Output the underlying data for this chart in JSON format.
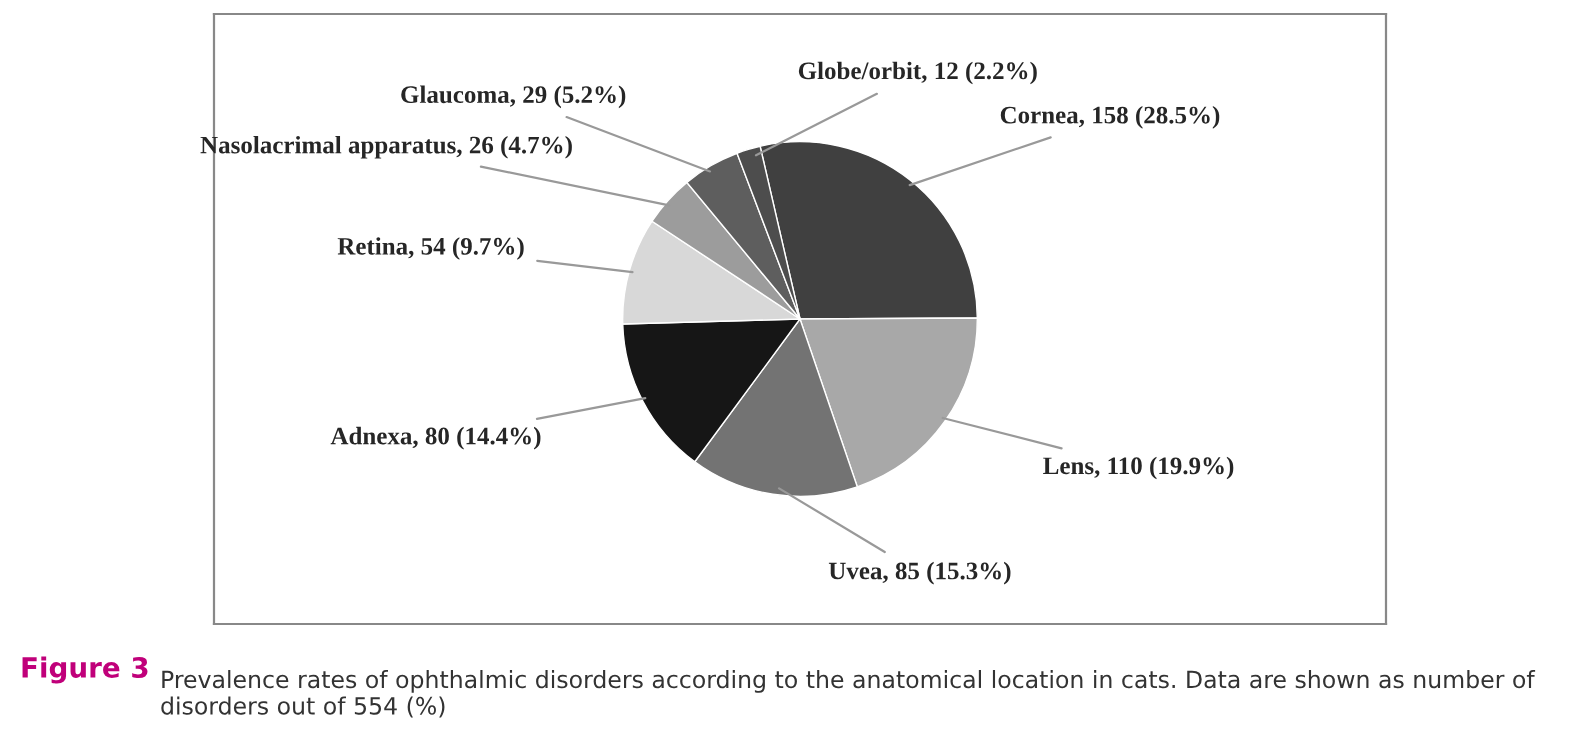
{
  "chart_data": {
    "type": "pie",
    "categories": [
      "Cornea, 158 (28.5%)",
      "Lens, 110 (19.9%)",
      "Uvea, 85 (15.3%)",
      "Adnexa, 80 (14.4%)",
      "Retina, 54 (9.7%)",
      "Nasolacrimal apparatus, 26 (4.7%)",
      "Glaucoma, 29 (5.2%)",
      "Globe/orbit, 12 (2.2%)"
    ],
    "values": [
      158,
      110,
      85,
      80,
      54,
      26,
      29,
      12
    ],
    "colors": [
      "#404040",
      "#a8a8a8",
      "#737373",
      "#161616",
      "#d8d8d8",
      "#9c9c9c",
      "#5e5e5e",
      "#4d4d4d"
    ],
    "annotations": [
      "Figure 3",
      "Prevalence rates of ophthalmic disorders according to the anatomical location in cats. Data are shown as number of disorders out of 554 (%)"
    ]
  }
}
